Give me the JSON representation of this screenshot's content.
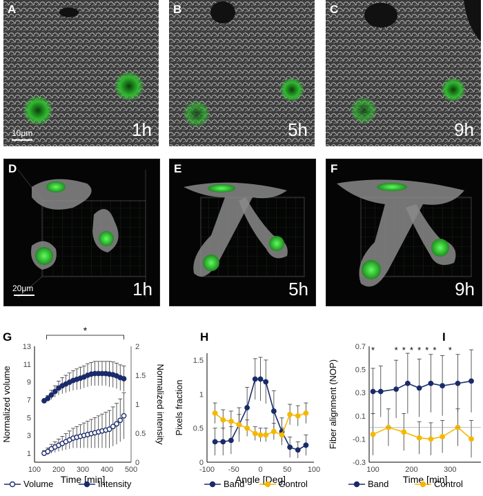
{
  "micro_panels": [
    {
      "label": "A",
      "time": "1h",
      "scale": "10μm"
    },
    {
      "label": "B",
      "time": "5h"
    },
    {
      "label": "C",
      "time": "9h"
    }
  ],
  "render_panels": [
    {
      "label": "D",
      "time": "1h",
      "scale": "20μm"
    },
    {
      "label": "E",
      "time": "5h"
    },
    {
      "label": "F",
      "time": "9h"
    }
  ],
  "colors": {
    "navy": "#1a2b6b",
    "yellow": "#f5b800",
    "green": "#3adb3a",
    "gray_bg": "#3a3a3a"
  },
  "chart_data": [
    {
      "panel": "G",
      "type": "line",
      "xlabel": "Time [min]",
      "ylabel": "Normalized volume",
      "y2label": "Normalized intensity",
      "xlim": [
        100,
        500
      ],
      "ylim": [
        0,
        13
      ],
      "y2lim": [
        0,
        2
      ],
      "xticks": [
        100,
        200,
        300,
        400,
        500
      ],
      "yticks": [
        1,
        3,
        5,
        7,
        9,
        11,
        13
      ],
      "y2ticks": [
        0,
        0.5,
        1,
        1.5,
        2
      ],
      "significance": "*",
      "legend_position": "bottom",
      "series": [
        {
          "name": "Volume",
          "axis": "left",
          "marker": "open-circle",
          "x": [
            140,
            155,
            170,
            185,
            200,
            215,
            230,
            245,
            260,
            275,
            290,
            305,
            320,
            335,
            350,
            365,
            380,
            395,
            410,
            425,
            440,
            455,
            470
          ],
          "values": [
            1.0,
            1.2,
            1.5,
            1.7,
            1.9,
            2.1,
            2.3,
            2.5,
            2.7,
            2.8,
            2.9,
            3.0,
            3.1,
            3.2,
            3.3,
            3.4,
            3.5,
            3.6,
            3.7,
            4.0,
            4.3,
            4.7,
            5.2
          ],
          "err": [
            0.3,
            0.4,
            0.5,
            0.6,
            0.7,
            0.8,
            0.9,
            1.0,
            1.1,
            1.2,
            1.3,
            1.4,
            1.5,
            1.6,
            1.7,
            1.8,
            1.9,
            2.0,
            2.1,
            2.2,
            2.3,
            2.4,
            2.6
          ]
        },
        {
          "name": "Intensity",
          "axis": "right",
          "marker": "filled-circle",
          "x": [
            140,
            155,
            170,
            185,
            200,
            215,
            230,
            245,
            260,
            275,
            290,
            305,
            320,
            335,
            350,
            365,
            380,
            395,
            410,
            425,
            440,
            455,
            470
          ],
          "values": [
            1.06,
            1.1,
            1.16,
            1.22,
            1.28,
            1.32,
            1.35,
            1.38,
            1.41,
            1.43,
            1.45,
            1.47,
            1.5,
            1.52,
            1.53,
            1.53,
            1.53,
            1.53,
            1.52,
            1.51,
            1.49,
            1.46,
            1.44
          ],
          "err": [
            0.02,
            0.05,
            0.08,
            0.1,
            0.12,
            0.14,
            0.15,
            0.16,
            0.17,
            0.18,
            0.19,
            0.19,
            0.2,
            0.2,
            0.21,
            0.21,
            0.21,
            0.21,
            0.22,
            0.22,
            0.22,
            0.22,
            0.22
          ]
        }
      ]
    },
    {
      "panel": "H",
      "type": "line",
      "xlabel": "Angle [Deg]",
      "ylabel": "Pixels fraction",
      "xlim": [
        -100,
        100
      ],
      "ylim": [
        0,
        1.6
      ],
      "xticks": [
        -100,
        -50,
        0,
        50,
        100
      ],
      "yticks": [
        0,
        0.5,
        1,
        1.5
      ],
      "legend_position": "bottom",
      "series": [
        {
          "name": "Band",
          "color": "#1a2b6b",
          "x": [
            -85,
            -70,
            -55,
            -40,
            -25,
            -10,
            0,
            10,
            25,
            40,
            55,
            70,
            85
          ],
          "values": [
            0.3,
            0.3,
            0.32,
            0.55,
            0.8,
            1.22,
            1.22,
            1.18,
            0.75,
            0.45,
            0.22,
            0.18,
            0.25
          ],
          "err": [
            0.2,
            0.2,
            0.2,
            0.25,
            0.3,
            0.3,
            0.32,
            0.32,
            0.3,
            0.2,
            0.15,
            0.12,
            0.15
          ]
        },
        {
          "name": "Control",
          "color": "#f5b800",
          "x": [
            -85,
            -70,
            -55,
            -40,
            -25,
            -10,
            0,
            10,
            25,
            40,
            55,
            70,
            85
          ],
          "values": [
            0.72,
            0.62,
            0.6,
            0.55,
            0.5,
            0.42,
            0.4,
            0.4,
            0.45,
            0.4,
            0.7,
            0.68,
            0.72
          ],
          "err": [
            0.15,
            0.15,
            0.15,
            0.15,
            0.12,
            0.1,
            0.1,
            0.1,
            0.12,
            0.1,
            0.15,
            0.15,
            0.15
          ]
        }
      ]
    },
    {
      "panel": "I",
      "type": "line",
      "xlabel": "Time [min]",
      "ylabel": "Fiber alignment (NOP)",
      "xlim": [
        90,
        380
      ],
      "ylim": [
        -0.3,
        0.7
      ],
      "xticks": [
        100,
        200,
        300
      ],
      "yticks": [
        -0.3,
        -0.1,
        0.1,
        0.3,
        0.5,
        0.7
      ],
      "significance_marks": [
        "*",
        "*",
        "*",
        "*",
        "*",
        "*",
        "*",
        "*"
      ],
      "significance_x": [
        100,
        160,
        180,
        200,
        220,
        240,
        260,
        300
      ],
      "legend_position": "bottom",
      "series": [
        {
          "name": "Band",
          "color": "#1a2b6b",
          "x": [
            100,
            120,
            160,
            190,
            220,
            250,
            280,
            320,
            355
          ],
          "values": [
            0.31,
            0.31,
            0.33,
            0.38,
            0.34,
            0.38,
            0.36,
            0.38,
            0.4
          ],
          "err": [
            0.2,
            0.22,
            0.25,
            0.26,
            0.25,
            0.25,
            0.26,
            0.25,
            0.27
          ]
        },
        {
          "name": "Control",
          "color": "#f5b800",
          "x": [
            100,
            140,
            180,
            220,
            250,
            280,
            320,
            355
          ],
          "values": [
            -0.06,
            0.0,
            -0.04,
            -0.09,
            -0.1,
            -0.08,
            0.0,
            -0.1
          ],
          "err": [
            0.18,
            0.16,
            0.16,
            0.14,
            0.14,
            0.14,
            0.16,
            0.16
          ]
        }
      ]
    }
  ],
  "panel_letters": {
    "g": "G",
    "h": "H",
    "i": "I"
  },
  "legend": {
    "g": [
      "Volume",
      "Intensity"
    ],
    "h": [
      "Band",
      "Control"
    ],
    "i": [
      "Band",
      "Control"
    ]
  }
}
